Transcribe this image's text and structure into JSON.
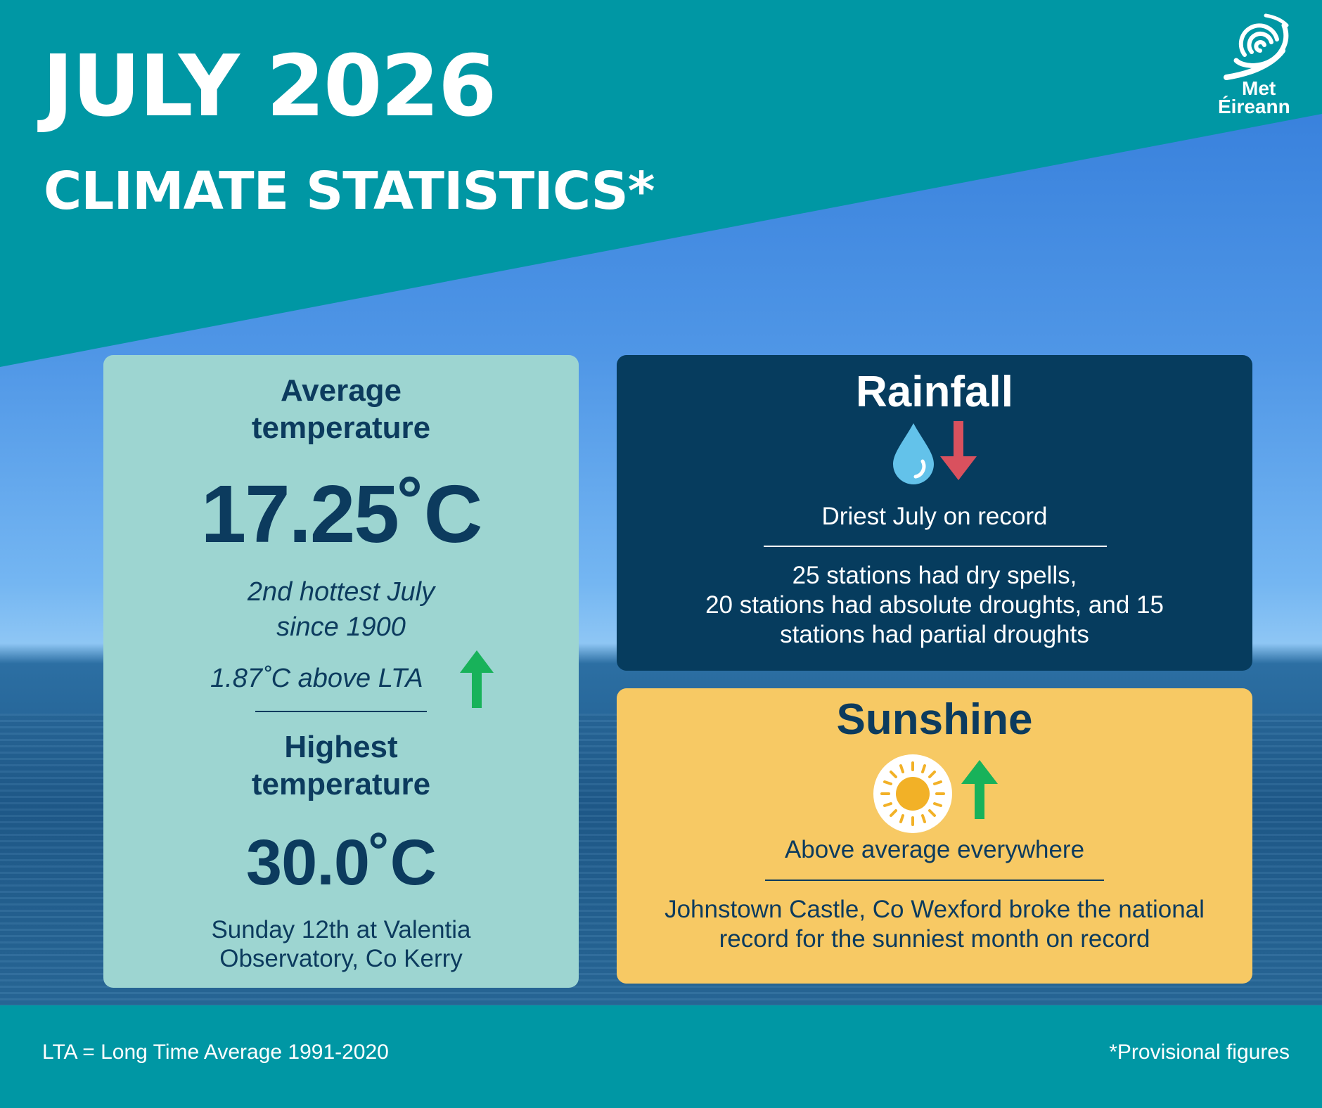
{
  "header": {
    "title": "JULY 2026",
    "subtitle": "CLIMATE STATISTICS*"
  },
  "logo": {
    "line1": "Met",
    "line2": "Éireann",
    "icon": "met-eireann-swirl-icon"
  },
  "temperature_card": {
    "avg_heading_line1": "Average",
    "avg_heading_line2": "temperature",
    "avg_value": "17.25˚C",
    "rank_line1": "2nd hottest July",
    "rank_line2": "since 1900",
    "lta_diff": "1.87˚C above LTA",
    "lta_trend_icon": "arrow-up-icon",
    "high_heading_line1": "Highest",
    "high_heading_line2": "temperature",
    "high_value": "30.0˚C",
    "high_detail_line1": "Sunday 12th at Valentia",
    "high_detail_line2": "Observatory, Co Kerry"
  },
  "rainfall_card": {
    "heading": "Rainfall",
    "icons": [
      "water-drop-icon",
      "arrow-down-icon"
    ],
    "summary": "Driest July on record",
    "detail_line1": "25 stations had dry spells,",
    "detail_line2": "20 stations had absolute droughts, and 15",
    "detail_line3": "stations had partial droughts"
  },
  "sunshine_card": {
    "heading": "Sunshine",
    "icons": [
      "sun-icon",
      "arrow-up-icon"
    ],
    "summary": "Above average everywhere",
    "detail_line1": "Johnstown Castle, Co Wexford broke the national",
    "detail_line2": "record for the sunniest month on record"
  },
  "footer": {
    "lta_note": "LTA = Long Time Average 1991-2020",
    "provisional_note": "*Provisional figures"
  },
  "colors": {
    "teal": "#0097a4",
    "temp_card": "#9dd5d1",
    "rain_card": "#063c5e",
    "sun_card": "#f7c964",
    "navy_text": "#0c3b5e",
    "arrow_up": "#18b25a",
    "arrow_down": "#d9515e"
  }
}
